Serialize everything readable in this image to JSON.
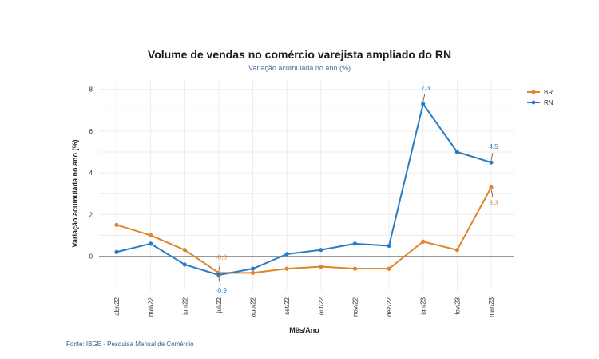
{
  "chart_data": {
    "type": "line",
    "title": "Volume de vendas no comércio varejista ampliado do RN",
    "subtitle": "Variação acumulada no ano (%)",
    "xlabel": "Mês/Ano",
    "ylabel": "Variação acumulada no ano (%)",
    "ylim": [
      -1.5,
      8
    ],
    "yticks": [
      0,
      2,
      4,
      6,
      8
    ],
    "grid": true,
    "legend_position": "top-right",
    "categories": [
      "abr/22",
      "mai/22",
      "jun/22",
      "jul/22",
      "ago/22",
      "set/22",
      "out/22",
      "nov/22",
      "dez/22",
      "jan/23",
      "fev/23",
      "mar/23"
    ],
    "series": [
      {
        "name": "BR",
        "color": "#e0832b",
        "values": [
          1.5,
          1.0,
          0.3,
          -0.8,
          -0.8,
          -0.6,
          -0.5,
          -0.6,
          -0.6,
          0.7,
          0.3,
          3.3
        ]
      },
      {
        "name": "RN",
        "color": "#2a7bc6",
        "values": [
          0.2,
          0.6,
          -0.4,
          -0.9,
          -0.6,
          0.1,
          0.3,
          0.6,
          0.5,
          7.3,
          5.0,
          4.5
        ]
      }
    ],
    "annotations": [
      {
        "series": "BR",
        "index": 3,
        "text": "-0,8",
        "position": "above"
      },
      {
        "series": "RN",
        "index": 3,
        "text": "-0,9",
        "position": "below"
      },
      {
        "series": "RN",
        "index": 9,
        "text": "7,3",
        "position": "above"
      },
      {
        "series": "RN",
        "index": 11,
        "text": "4,5",
        "position": "above"
      },
      {
        "series": "BR",
        "index": 11,
        "text": "3,3",
        "position": "below"
      }
    ]
  },
  "footer": {
    "source": "Fonte: IBGE - Pesquisa Mensal de Comércio"
  }
}
